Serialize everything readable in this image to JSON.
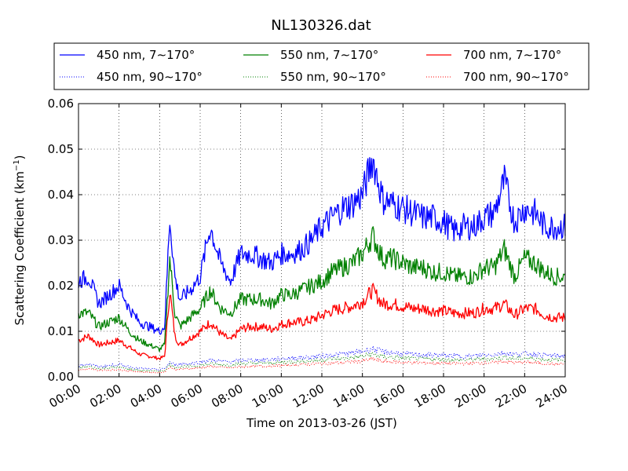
{
  "chart_data": {
    "type": "line",
    "title": "NL130326.dat",
    "xlabel": "Time on 2013-03-26 (JST)",
    "ylabel_main": "Scattering Coefficient (km",
    "ylabel_sup": "−1",
    "ylabel_tail": ")",
    "xlim": [
      "00:00",
      "24:00"
    ],
    "ylim": [
      0,
      0.06
    ],
    "grid": true,
    "legend_position": "top",
    "x_ticks": [
      "00:00",
      "02:00",
      "04:00",
      "06:00",
      "08:00",
      "10:00",
      "12:00",
      "14:00",
      "16:00",
      "18:00",
      "20:00",
      "22:00",
      "24:00"
    ],
    "y_ticks": [
      "0.00",
      "0.01",
      "0.02",
      "0.03",
      "0.04",
      "0.05",
      "0.06"
    ],
    "x_hours": [
      0,
      0.5,
      1,
      1.5,
      2,
      2.5,
      3,
      3.5,
      4,
      4.25,
      4.5,
      4.75,
      5,
      5.5,
      6,
      6.5,
      7,
      7.5,
      8,
      8.5,
      9,
      9.5,
      10,
      10.5,
      11,
      11.5,
      12,
      12.5,
      13,
      13.5,
      14,
      14.5,
      15,
      15.5,
      16,
      16.5,
      17,
      17.5,
      18,
      18.5,
      19,
      19.5,
      20,
      20.5,
      21,
      21.5,
      22,
      22.5,
      23,
      23.5,
      24
    ],
    "series": [
      {
        "name": "450 nm, 7∼170°",
        "color": "#0000ff",
        "style": "solid",
        "values": [
          0.021,
          0.022,
          0.016,
          0.018,
          0.02,
          0.015,
          0.012,
          0.011,
          0.01,
          0.011,
          0.035,
          0.022,
          0.017,
          0.019,
          0.022,
          0.033,
          0.025,
          0.021,
          0.027,
          0.027,
          0.026,
          0.025,
          0.027,
          0.027,
          0.028,
          0.03,
          0.033,
          0.035,
          0.037,
          0.038,
          0.04,
          0.048,
          0.039,
          0.038,
          0.037,
          0.036,
          0.035,
          0.035,
          0.034,
          0.032,
          0.033,
          0.033,
          0.035,
          0.036,
          0.043,
          0.034,
          0.037,
          0.036,
          0.033,
          0.033,
          0.033
        ]
      },
      {
        "name": "450 nm, 90∼170°",
        "color": "#0000ff",
        "style": "dotted",
        "values": [
          0.0025,
          0.0028,
          0.0022,
          0.0025,
          0.0027,
          0.0022,
          0.0018,
          0.0017,
          0.0016,
          0.0018,
          0.0032,
          0.0026,
          0.0028,
          0.0029,
          0.0032,
          0.0037,
          0.0034,
          0.0033,
          0.0036,
          0.0037,
          0.0037,
          0.0038,
          0.004,
          0.0041,
          0.0042,
          0.0043,
          0.0046,
          0.0048,
          0.005,
          0.0052,
          0.0056,
          0.0062,
          0.0055,
          0.0053,
          0.005,
          0.0049,
          0.0048,
          0.0048,
          0.0047,
          0.0046,
          0.0045,
          0.0046,
          0.0048,
          0.0049,
          0.0053,
          0.0049,
          0.0051,
          0.005,
          0.0047,
          0.0046,
          0.0046
        ]
      },
      {
        "name": "550 nm, 7∼170°",
        "color": "#008000",
        "style": "solid",
        "values": [
          0.014,
          0.014,
          0.011,
          0.012,
          0.013,
          0.01,
          0.008,
          0.007,
          0.006,
          0.007,
          0.026,
          0.014,
          0.011,
          0.013,
          0.015,
          0.019,
          0.015,
          0.014,
          0.017,
          0.017,
          0.017,
          0.016,
          0.018,
          0.018,
          0.019,
          0.02,
          0.021,
          0.023,
          0.024,
          0.025,
          0.027,
          0.031,
          0.026,
          0.026,
          0.025,
          0.024,
          0.024,
          0.023,
          0.023,
          0.022,
          0.022,
          0.022,
          0.024,
          0.024,
          0.028,
          0.022,
          0.026,
          0.025,
          0.023,
          0.022,
          0.022
        ]
      },
      {
        "name": "550 nm, 90∼170°",
        "color": "#008000",
        "style": "dotted",
        "values": [
          0.002,
          0.0022,
          0.0018,
          0.002,
          0.0021,
          0.0017,
          0.0014,
          0.0013,
          0.0012,
          0.0014,
          0.0027,
          0.0021,
          0.0022,
          0.0023,
          0.0025,
          0.0029,
          0.0027,
          0.0026,
          0.0029,
          0.003,
          0.003,
          0.003,
          0.0032,
          0.0033,
          0.0034,
          0.0035,
          0.0037,
          0.0039,
          0.004,
          0.0042,
          0.0045,
          0.005,
          0.0044,
          0.0043,
          0.0041,
          0.004,
          0.0039,
          0.0039,
          0.0038,
          0.0037,
          0.0037,
          0.0038,
          0.0039,
          0.004,
          0.0043,
          0.004,
          0.0041,
          0.004,
          0.0038,
          0.0037,
          0.0037
        ]
      },
      {
        "name": "700 nm, 7∼170°",
        "color": "#ff0000",
        "style": "solid",
        "values": [
          0.008,
          0.009,
          0.007,
          0.0075,
          0.008,
          0.0065,
          0.005,
          0.0045,
          0.004,
          0.0045,
          0.019,
          0.009,
          0.007,
          0.0085,
          0.01,
          0.012,
          0.0095,
          0.008,
          0.0105,
          0.011,
          0.011,
          0.0105,
          0.0115,
          0.012,
          0.012,
          0.0125,
          0.0135,
          0.0145,
          0.015,
          0.0155,
          0.0165,
          0.019,
          0.016,
          0.016,
          0.0155,
          0.015,
          0.015,
          0.0145,
          0.0145,
          0.014,
          0.014,
          0.014,
          0.015,
          0.015,
          0.016,
          0.0135,
          0.015,
          0.015,
          0.0135,
          0.013,
          0.013
        ]
      },
      {
        "name": "700 nm, 90∼170°",
        "color": "#ff0000",
        "style": "dotted",
        "values": [
          0.0015,
          0.0017,
          0.0014,
          0.0015,
          0.0016,
          0.0013,
          0.0011,
          0.001,
          0.0009,
          0.0011,
          0.0022,
          0.0016,
          0.0017,
          0.0018,
          0.002,
          0.0023,
          0.0021,
          0.002,
          0.0022,
          0.0023,
          0.0023,
          0.0024,
          0.0025,
          0.0026,
          0.0027,
          0.0028,
          0.0029,
          0.003,
          0.0031,
          0.0033,
          0.0035,
          0.0039,
          0.0034,
          0.0033,
          0.0032,
          0.0031,
          0.0031,
          0.003,
          0.003,
          0.0029,
          0.0029,
          0.003,
          0.0031,
          0.0031,
          0.0034,
          0.0031,
          0.0032,
          0.0031,
          0.0029,
          0.0028,
          0.0028
        ]
      }
    ]
  }
}
